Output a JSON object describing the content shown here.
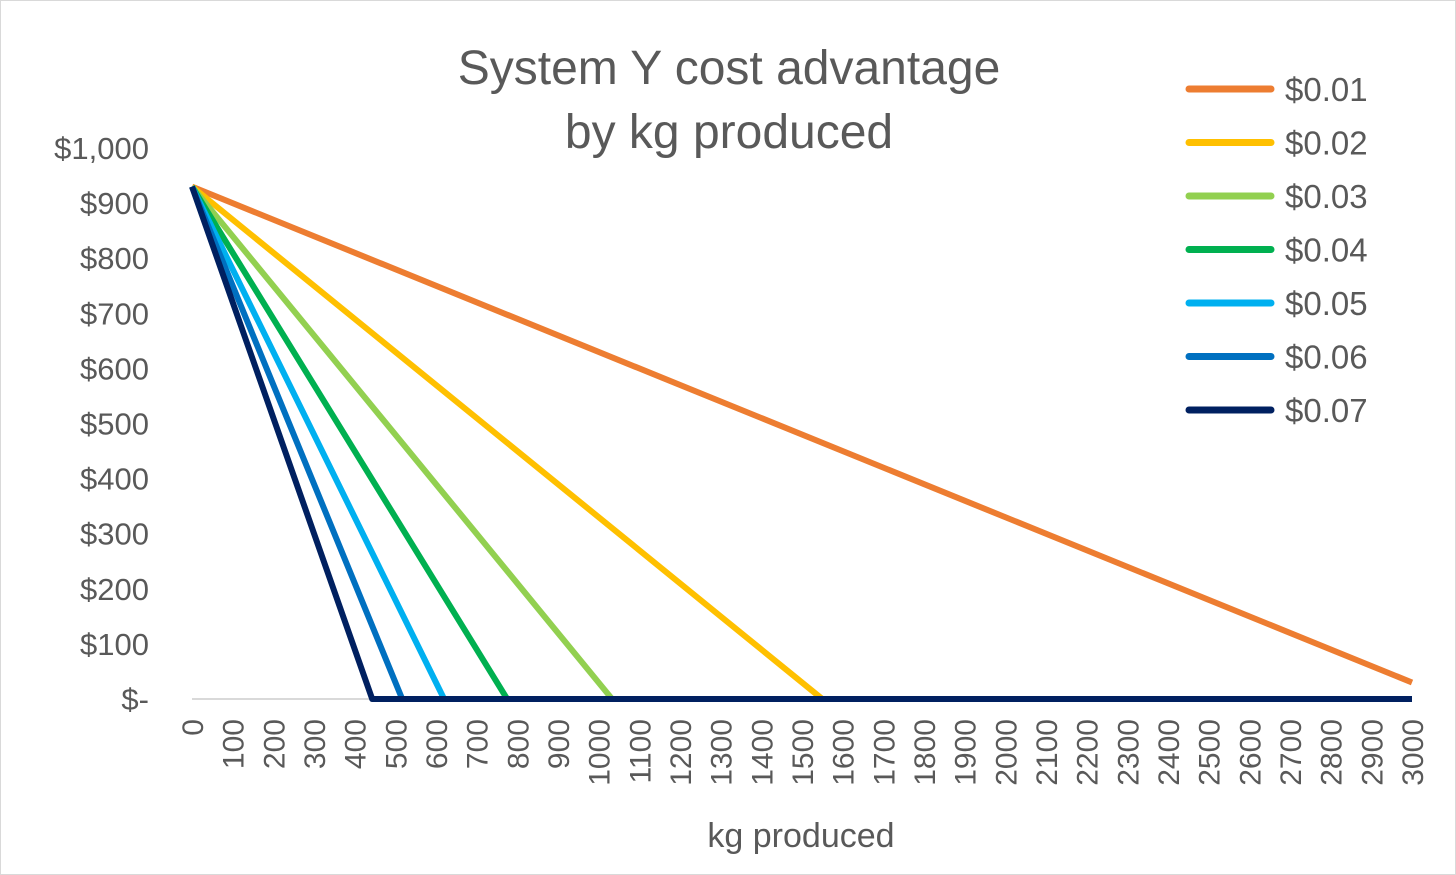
{
  "chart_data": {
    "type": "line",
    "title_lines": [
      "System Y cost advantage",
      "by kg produced"
    ],
    "xlabel": "kg produced",
    "ylabel": "",
    "x_ticks": [
      "0",
      "100",
      "200",
      "300",
      "400",
      "500",
      "600",
      "700",
      "800",
      "900",
      "1000",
      "1100",
      "1200",
      "1300",
      "1400",
      "1500",
      "1600",
      "1700",
      "1800",
      "1900",
      "2000",
      "2100",
      "2200",
      "2300",
      "2400",
      "2500",
      "2600",
      "2700",
      "2800",
      "2900",
      "3000"
    ],
    "y_ticks": [
      "$-",
      "$100",
      "$200",
      "$300",
      "$400",
      "$500",
      "$600",
      "$700",
      "$800",
      "$900",
      "$1,000"
    ],
    "xlim": [
      0,
      3000
    ],
    "ylim": [
      0,
      1000
    ],
    "grid": false,
    "legend_position": "top-right",
    "series": [
      {
        "name": "$0.01",
        "color": "#ED7D31",
        "points": [
          [
            0,
            930
          ],
          [
            3000,
            30
          ]
        ]
      },
      {
        "name": "$0.02",
        "color": "#FFC000",
        "points": [
          [
            0,
            930
          ],
          [
            1550,
            0
          ],
          [
            3000,
            0
          ]
        ]
      },
      {
        "name": "$0.03",
        "color": "#92D050",
        "points": [
          [
            0,
            930
          ],
          [
            1033,
            0
          ],
          [
            3000,
            0
          ]
        ]
      },
      {
        "name": "$0.04",
        "color": "#00B050",
        "points": [
          [
            0,
            930
          ],
          [
            775,
            0
          ],
          [
            3000,
            0
          ]
        ]
      },
      {
        "name": "$0.05",
        "color": "#00B0F0",
        "points": [
          [
            0,
            930
          ],
          [
            620,
            0
          ],
          [
            3000,
            0
          ]
        ]
      },
      {
        "name": "$0.06",
        "color": "#0070C0",
        "points": [
          [
            0,
            930
          ],
          [
            517,
            0
          ],
          [
            3000,
            0
          ]
        ]
      },
      {
        "name": "$0.07",
        "color": "#002060",
        "points": [
          [
            0,
            930
          ],
          [
            443,
            0
          ],
          [
            3000,
            0
          ]
        ]
      }
    ]
  }
}
